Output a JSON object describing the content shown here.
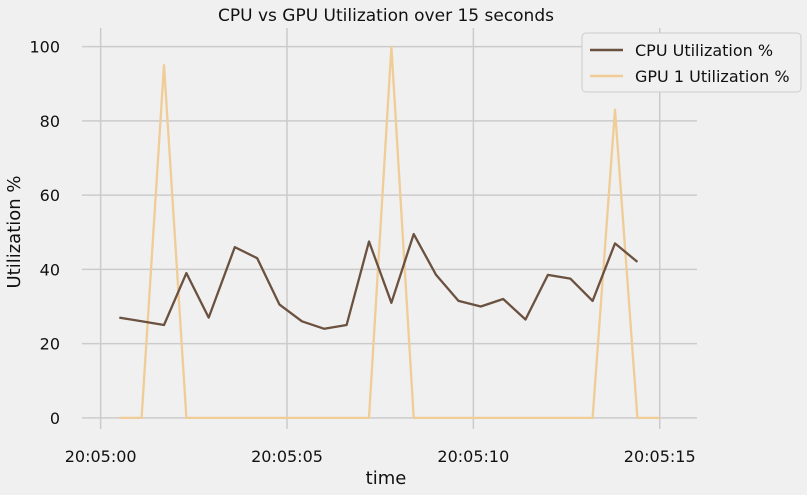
{
  "chart_data": {
    "type": "line",
    "title": "CPU vs GPU Utilization over 15 seconds",
    "xlabel": "time",
    "ylabel": "Utilization %",
    "x_ticks": [
      "20:05:00",
      "20:05:05",
      "20:05:10",
      "20:05:15"
    ],
    "x_tick_seconds": [
      0,
      5,
      10,
      15
    ],
    "xlim_seconds": [
      -0.5,
      16
    ],
    "ylim": [
      -3,
      105
    ],
    "y_ticks": [
      0,
      20,
      40,
      60,
      80,
      100
    ],
    "legend_position": "top-right",
    "x_seconds": [
      0.5,
      1.1,
      1.7,
      2.3,
      2.9,
      3.6,
      4.2,
      4.8,
      5.4,
      6.0,
      6.6,
      7.2,
      7.8,
      8.4,
      9.0,
      9.6,
      10.2,
      10.8,
      11.4,
      12.0,
      12.6,
      13.2,
      13.8,
      14.4,
      15.0
    ],
    "series": [
      {
        "name": "CPU Utilization %",
        "color": "#6b5140",
        "values": [
          27,
          26,
          25,
          39,
          27,
          46,
          43,
          30.5,
          26,
          24,
          25,
          47.5,
          31,
          49.5,
          38.5,
          31.5,
          30,
          32,
          26.5,
          38.5,
          37.5,
          31.5,
          47,
          42
        ]
      },
      {
        "name": "GPU 1 Utilization %",
        "color": "#f0cc96",
        "values": [
          0,
          0,
          95,
          0,
          0,
          0,
          0,
          0,
          0,
          0,
          0,
          0,
          100,
          0,
          0,
          0,
          0,
          0,
          0,
          0,
          0,
          0,
          83,
          0,
          0
        ]
      }
    ],
    "cpu_x_seconds": [
      0.5,
      1.1,
      1.7,
      2.3,
      2.9,
      3.6,
      4.2,
      4.8,
      5.4,
      6.0,
      6.6,
      7.2,
      7.8,
      8.4,
      9.0,
      9.6,
      10.2,
      10.8,
      11.4,
      12.0,
      12.6,
      13.2,
      13.8,
      14.4
    ]
  }
}
